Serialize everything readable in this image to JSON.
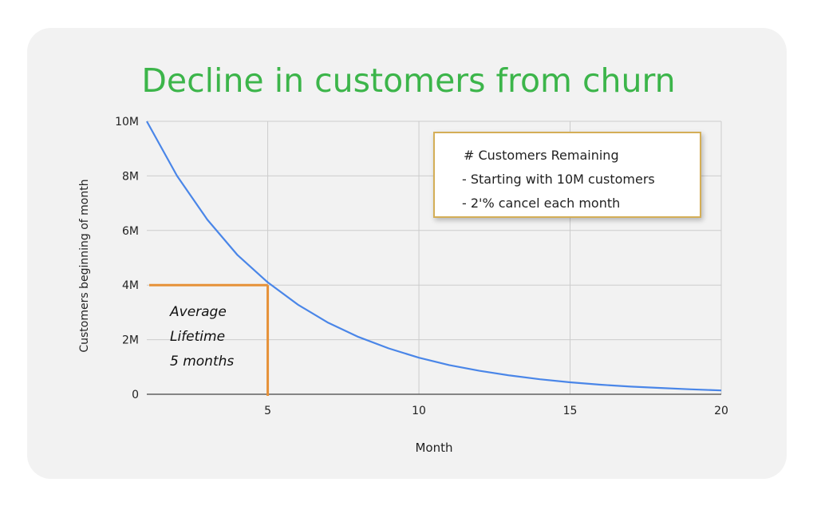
{
  "chart_data": {
    "type": "line",
    "title": "Decline in customers from churn",
    "xlabel": "Month",
    "ylabel": "Customers beginning of month",
    "xlim": [
      1,
      20
    ],
    "ylim": [
      0,
      10000000
    ],
    "x_ticks": [
      5,
      10,
      15,
      20
    ],
    "y_ticks": [
      0,
      2000000,
      4000000,
      6000000,
      8000000,
      10000000
    ],
    "x_tick_labels": [
      "5",
      "10",
      "15",
      "20"
    ],
    "y_tick_labels": [
      "0",
      "2M",
      "4M",
      "6M",
      "8M",
      "10M"
    ],
    "grid": true,
    "legend_position": "top-right",
    "legend": {
      "heading": "# Customers Remaining",
      "lines": [
        "- Starting with 10M customers",
        "- 2'% cancel each month"
      ]
    },
    "series": [
      {
        "color": "#4a86e8",
        "x": [
          1,
          2,
          3,
          4,
          5,
          6,
          7,
          8,
          9,
          10,
          11,
          12,
          13,
          14,
          15,
          16,
          17,
          18,
          19,
          20
        ],
        "y": [
          10000000,
          8000000,
          6400000,
          5100000,
          4100000,
          3280000,
          2620000,
          2100000,
          1680000,
          1340000,
          1070000,
          860000,
          690000,
          550000,
          440000,
          350000,
          280000,
          230000,
          180000,
          140000
        ]
      }
    ],
    "annotation": {
      "lines": [
        "Average",
        "Lifetime",
        "5 months"
      ],
      "marker_x": 5,
      "marker_y": 4000000,
      "color": "#e69138"
    }
  }
}
